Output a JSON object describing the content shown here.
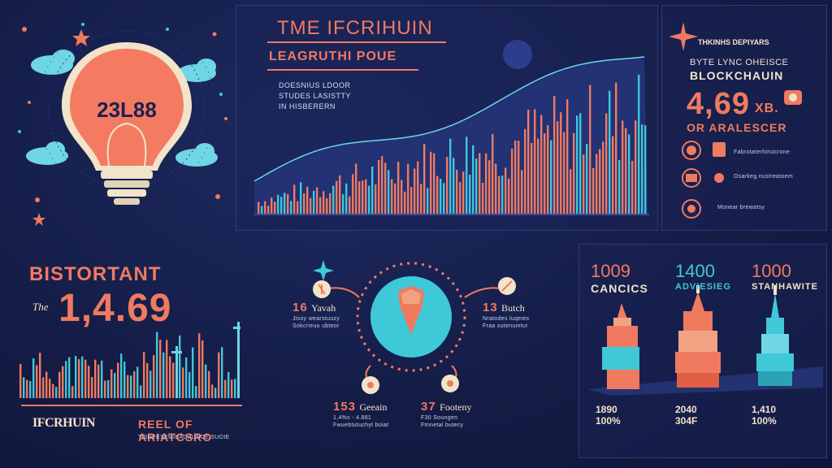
{
  "colors": {
    "background": "#141c45",
    "salmon": "#f07a5f",
    "teal": "#3fc8d8",
    "cream": "#f2e4c8",
    "bulb": "#f47a62"
  },
  "bulb_panel": {
    "value": "23L88"
  },
  "main_chart": {
    "title": "TME IFCRIHUIN",
    "subtitle": "LEAGRUTHI POUE",
    "note_lines": [
      "DOESNIUS LDOOR",
      "STUDES LASISTTY",
      "IN HISBERERN"
    ]
  },
  "right_panel": {
    "top_line": "THKINHS DEPIYARS",
    "line2": "BYTE LYNC OHEISCE",
    "line3": "BLOCKCHAUIN",
    "big_value": "4,69",
    "unit": "XB.",
    "caption": "OR ARALESCER",
    "items": [
      {
        "icon": "coin-icon",
        "text": "Fabrotaterhiruicrone"
      },
      {
        "icon": "briefcase-icon",
        "text": "Osarkeg nustreatoem"
      },
      {
        "icon": "chart-icon",
        "text": "Monear brewatsy"
      }
    ]
  },
  "stats_panel": {
    "title": "BISTORTANT",
    "prefix": "The",
    "big_value": "1,4.69",
    "logo_text": "IFCRHUIN",
    "footer": "REEL OF ARIATCSRO",
    "footer_sub": "TISHEESEMIEAGAUNCE SUOIE"
  },
  "hub_panel": {
    "nodes": [
      {
        "num": "16",
        "label": "Yavah"
      },
      {
        "num": "13",
        "label": "Butch"
      },
      {
        "num": "153",
        "label": "Geeain"
      },
      {
        "num": "37",
        "label": "Footeny"
      }
    ],
    "sub_lines": [
      [
        "Jisoy wearstuuzy",
        "Sokcrieuu ubteor"
      ],
      [
        "Nratodes luqeies",
        "Fraa sutenumtur"
      ],
      [
        "1,4%s - 4.881",
        "Fwuebtutuchyt boiat"
      ],
      [
        "F30 Soungen",
        "Ftnnetal butecy"
      ]
    ]
  },
  "towers_panel": {
    "towers": [
      {
        "value": "1009",
        "label": "CANCICS",
        "lines": [
          "1890",
          "100%"
        ]
      },
      {
        "value": "1400",
        "label": "ADVIESIEG",
        "lines": [
          "2040",
          "304F"
        ]
      },
      {
        "value": "1000",
        "label": "STANHAWITE",
        "lines": [
          "1,410",
          "100%"
        ]
      }
    ]
  }
}
